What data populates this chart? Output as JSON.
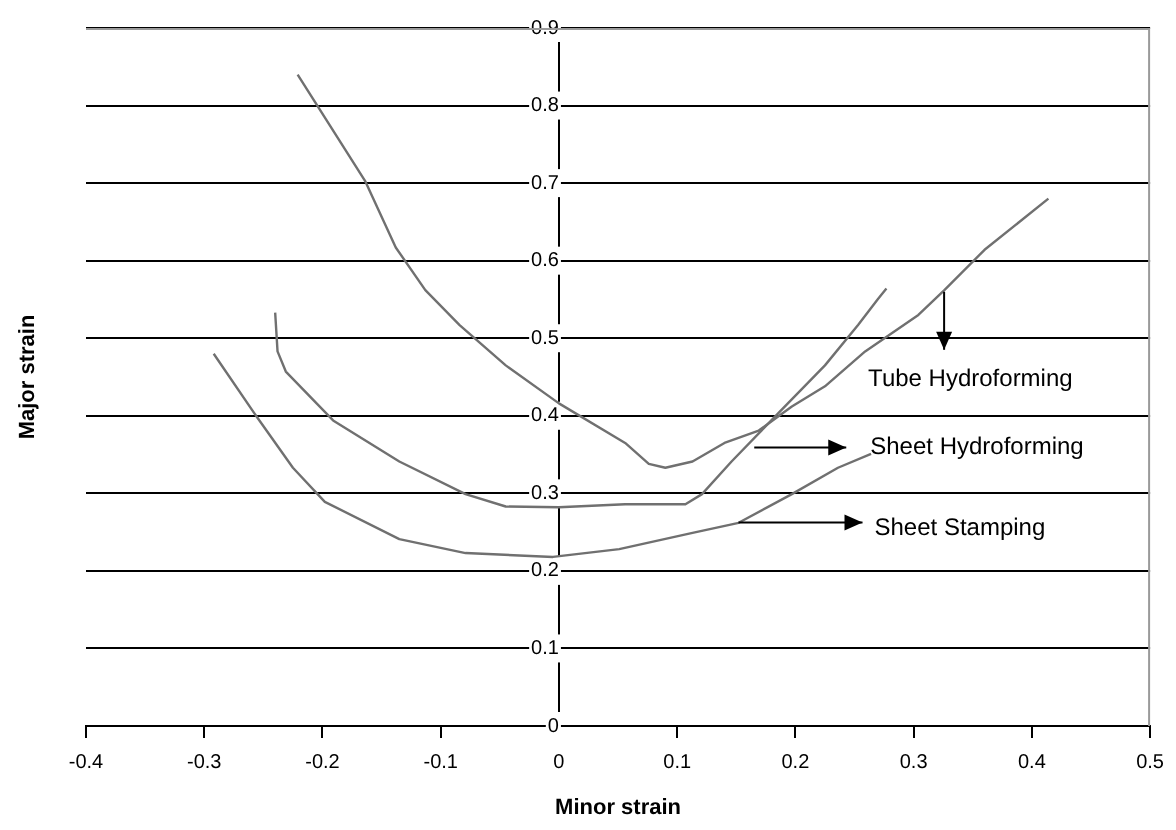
{
  "chart_data": {
    "type": "line",
    "xlabel": "Minor strain",
    "ylabel": "Major strain",
    "xlim": [
      -0.4,
      0.5
    ],
    "xticks": [
      -0.4,
      -0.3,
      -0.2,
      -0.1,
      0,
      0.1,
      0.2,
      0.3,
      0.4,
      0.5
    ],
    "ylim": [
      0,
      0.9
    ],
    "yticks": [
      0,
      0.1,
      0.2,
      0.3,
      0.4,
      0.5,
      0.6,
      0.7,
      0.8,
      0.9
    ],
    "grid": "y",
    "legend": false,
    "marker": "none",
    "line_style": "solid",
    "series": [
      {
        "color": "#707070",
        "x": [
          -0.221,
          -0.164,
          -0.138,
          -0.113,
          -0.084,
          -0.045,
          0,
          0.056,
          0.076,
          0.09,
          0.113,
          0.14,
          0.169,
          0.197,
          0.225,
          0.259,
          0.304,
          0.326,
          0.36,
          0.414
        ],
        "values": [
          0.84,
          0.703,
          0.617,
          0.562,
          0.517,
          0.465,
          0.416,
          0.365,
          0.338,
          0.333,
          0.341,
          0.365,
          0.381,
          0.412,
          0.438,
          0.483,
          0.53,
          0.562,
          0.614,
          0.68
        ]
      },
      {
        "color": "#707070",
        "x": [
          -0.24,
          -0.238,
          -0.231,
          -0.191,
          -0.135,
          -0.079,
          -0.045,
          0,
          0.056,
          0.107,
          0.121,
          0.146,
          0.186,
          0.225,
          0.253,
          0.27,
          0.277
        ],
        "values": [
          0.533,
          0.483,
          0.457,
          0.394,
          0.341,
          0.299,
          0.283,
          0.282,
          0.286,
          0.286,
          0.299,
          0.341,
          0.404,
          0.465,
          0.517,
          0.551,
          0.564
        ]
      },
      {
        "color": "#707070",
        "x": [
          -0.292,
          -0.258,
          -0.225,
          -0.198,
          -0.135,
          -0.079,
          -0.005,
          0.051,
          0.113,
          0.152,
          0.197,
          0.236,
          0.264
        ],
        "values": [
          0.48,
          0.404,
          0.333,
          0.289,
          0.241,
          0.223,
          0.218,
          0.228,
          0.249,
          0.262,
          0.299,
          0.333,
          0.351
        ]
      }
    ],
    "annotations": [
      "Tube Hydroforming",
      "Sheet Hydroforming",
      "Sheet Stamping"
    ]
  }
}
